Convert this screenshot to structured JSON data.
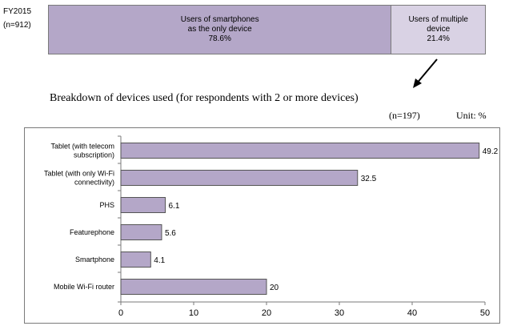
{
  "header": {
    "fy_label": "FY2015",
    "n_label": "(n=912)"
  },
  "stacked": {
    "segments": [
      {
        "lines": [
          "Users of smartphones",
          "as the only device",
          "78.6%"
        ],
        "value": 78.6,
        "color": "#b4a7c8"
      },
      {
        "lines": [
          "Users of multiple",
          "device",
          "21.4%"
        ],
        "value": 21.4,
        "color": "#d9d2e4"
      }
    ]
  },
  "breakdown": {
    "title": "Breakdown of devices used (for respondents with 2 or more devices)",
    "n_label": "(n=197)",
    "unit_label": "Unit: %"
  },
  "chart_data": {
    "type": "bar",
    "orientation": "horizontal",
    "categories": [
      [
        "Tablet (with telecom",
        "subscription)"
      ],
      [
        "Tablet (with only Wi-Fi",
        "connectivity)"
      ],
      [
        "PHS"
      ],
      [
        "Featurephone"
      ],
      [
        "Smartphone"
      ],
      [
        "Mobile Wi-Fi router"
      ]
    ],
    "values": [
      49.2,
      32.5,
      6.1,
      5.6,
      4.1,
      20
    ],
    "value_labels": [
      "49.2",
      "32.5",
      "6.1",
      "5.6",
      "4.1",
      "20"
    ],
    "xlim": [
      0,
      50
    ],
    "xticks": [
      0,
      10,
      20,
      30,
      40,
      50
    ],
    "bar_color": "#b4a7c8",
    "bar_stroke": "#555555",
    "grid": false
  }
}
